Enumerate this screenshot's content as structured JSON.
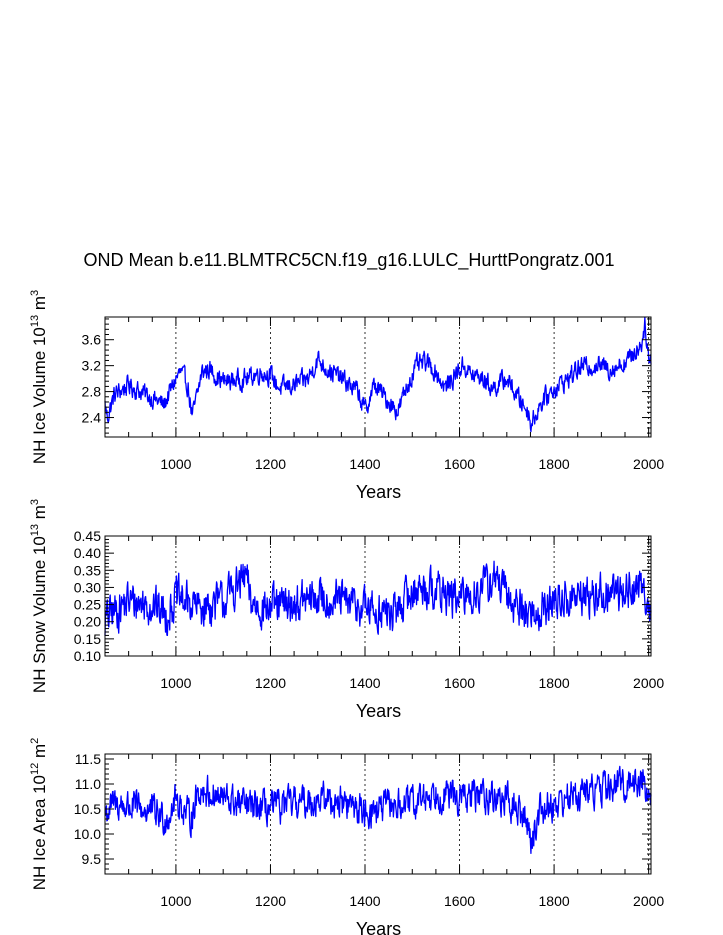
{
  "chart_data": [
    {
      "type": "line",
      "title": "OND Mean b.e11.BLMTRC5CN.f19_g16.LULC_HurttPongratz.001",
      "xlabel": "Years",
      "ylabel": "NH Ice Volume 10",
      "ylabel_exp": "13",
      "ylabel_unit": "m",
      "ylabel_unit_exp": "3",
      "xlim": [
        850,
        2005
      ],
      "ylim": [
        2.1,
        3.95
      ],
      "xticks": [
        1000,
        1200,
        1400,
        1600,
        1800,
        2000
      ],
      "xtick_labels": [
        "1000",
        "1200",
        "1400",
        "1600",
        "1800",
        "2000"
      ],
      "yticks": [
        2.4,
        2.8,
        3.2,
        3.6
      ],
      "ytick_labels": [
        "2.4",
        "2.8",
        "3.2",
        "3.6"
      ],
      "color": "#0000ff",
      "grid": "dashed vertical at major x ticks",
      "keypoints_x": [
        850,
        855,
        870,
        900,
        950,
        975,
        1000,
        1010,
        1025,
        1035,
        1045,
        1055,
        1070,
        1100,
        1150,
        1180,
        1200,
        1220,
        1250,
        1280,
        1300,
        1320,
        1350,
        1385,
        1400,
        1420,
        1450,
        1470,
        1490,
        1510,
        1530,
        1550,
        1570,
        1600,
        1610,
        1625,
        1650,
        1670,
        1700,
        1720,
        1745,
        1752,
        1770,
        1800,
        1830,
        1850,
        1870,
        1900,
        1920,
        1950,
        1970,
        1985,
        1993,
        2000,
        2005
      ],
      "keypoints_y": [
        2.6,
        2.4,
        2.75,
        2.9,
        2.7,
        2.6,
        3.0,
        3.1,
        2.9,
        2.4,
        2.75,
        3.1,
        3.15,
        2.95,
        3.0,
        3.1,
        3.05,
        2.85,
        2.9,
        3.0,
        3.3,
        3.15,
        3.0,
        2.8,
        2.5,
        2.9,
        2.65,
        2.5,
        2.9,
        3.2,
        3.25,
        3.1,
        2.85,
        3.15,
        3.2,
        3.05,
        3.0,
        2.85,
        3.0,
        2.75,
        2.5,
        2.3,
        2.6,
        2.85,
        3.0,
        3.15,
        3.2,
        3.2,
        3.15,
        3.25,
        3.4,
        3.55,
        3.85,
        3.3,
        3.25
      ],
      "noise_amplitude": 0.13
    },
    {
      "type": "line",
      "xlabel": "Years",
      "ylabel": "NH Snow Volume 10",
      "ylabel_exp": "13",
      "ylabel_unit": "m",
      "ylabel_unit_exp": "3",
      "xlim": [
        850,
        2005
      ],
      "ylim": [
        0.1,
        0.45
      ],
      "xticks": [
        1000,
        1200,
        1400,
        1600,
        1800,
        2000
      ],
      "xtick_labels": [
        "1000",
        "1200",
        "1400",
        "1600",
        "1800",
        "2000"
      ],
      "yticks": [
        0.1,
        0.15,
        0.2,
        0.25,
        0.3,
        0.35,
        0.4,
        0.45
      ],
      "ytick_labels": [
        "0.10",
        "0.15",
        "0.20",
        "0.25",
        "0.30",
        "0.35",
        "0.40",
        "0.45"
      ],
      "color": "#0000ff",
      "grid": "dashed vertical at major x ticks",
      "keypoints_x": [
        850,
        860,
        900,
        950,
        980,
        1000,
        1050,
        1100,
        1148,
        1160,
        1200,
        1250,
        1300,
        1350,
        1400,
        1430,
        1460,
        1500,
        1540,
        1570,
        1600,
        1650,
        1675,
        1700,
        1740,
        1760,
        1800,
        1850,
        1900,
        1950,
        1990,
        2005
      ],
      "keypoints_y": [
        0.2,
        0.22,
        0.26,
        0.25,
        0.22,
        0.27,
        0.24,
        0.26,
        0.33,
        0.25,
        0.24,
        0.25,
        0.27,
        0.26,
        0.24,
        0.23,
        0.22,
        0.29,
        0.3,
        0.28,
        0.26,
        0.3,
        0.33,
        0.27,
        0.23,
        0.22,
        0.26,
        0.27,
        0.28,
        0.29,
        0.3,
        0.24
      ],
      "noise_amplitude": 0.05
    },
    {
      "type": "line",
      "xlabel": "Years",
      "ylabel": "NH Ice Area 10",
      "ylabel_exp": "12",
      "ylabel_unit": "m",
      "ylabel_unit_exp": "2",
      "xlim": [
        850,
        2005
      ],
      "ylim": [
        9.2,
        11.6
      ],
      "xticks": [
        1000,
        1200,
        1400,
        1600,
        1800,
        2000
      ],
      "xtick_labels": [
        "1000",
        "1200",
        "1400",
        "1600",
        "1800",
        "2000"
      ],
      "yticks": [
        9.5,
        10.0,
        10.5,
        11.0,
        11.5
      ],
      "ytick_labels": [
        "9.5",
        "10.0",
        "10.5",
        "11.0",
        "11.5"
      ],
      "color": "#0000ff",
      "grid": "dashed vertical at major x ticks",
      "keypoints_x": [
        850,
        870,
        900,
        950,
        980,
        1000,
        1030,
        1050,
        1100,
        1150,
        1200,
        1250,
        1300,
        1350,
        1400,
        1450,
        1500,
        1550,
        1600,
        1650,
        1700,
        1720,
        1745,
        1752,
        1770,
        1800,
        1850,
        1900,
        1950,
        1990,
        2005
      ],
      "keypoints_y": [
        10.4,
        10.6,
        10.55,
        10.45,
        10.3,
        10.7,
        10.3,
        10.9,
        10.7,
        10.55,
        10.5,
        10.6,
        10.7,
        10.65,
        10.45,
        10.55,
        10.6,
        10.85,
        10.7,
        10.8,
        10.65,
        10.5,
        10.2,
        9.85,
        10.5,
        10.6,
        10.8,
        10.9,
        11.0,
        11.1,
        10.5
      ],
      "noise_amplitude": 0.28
    }
  ]
}
